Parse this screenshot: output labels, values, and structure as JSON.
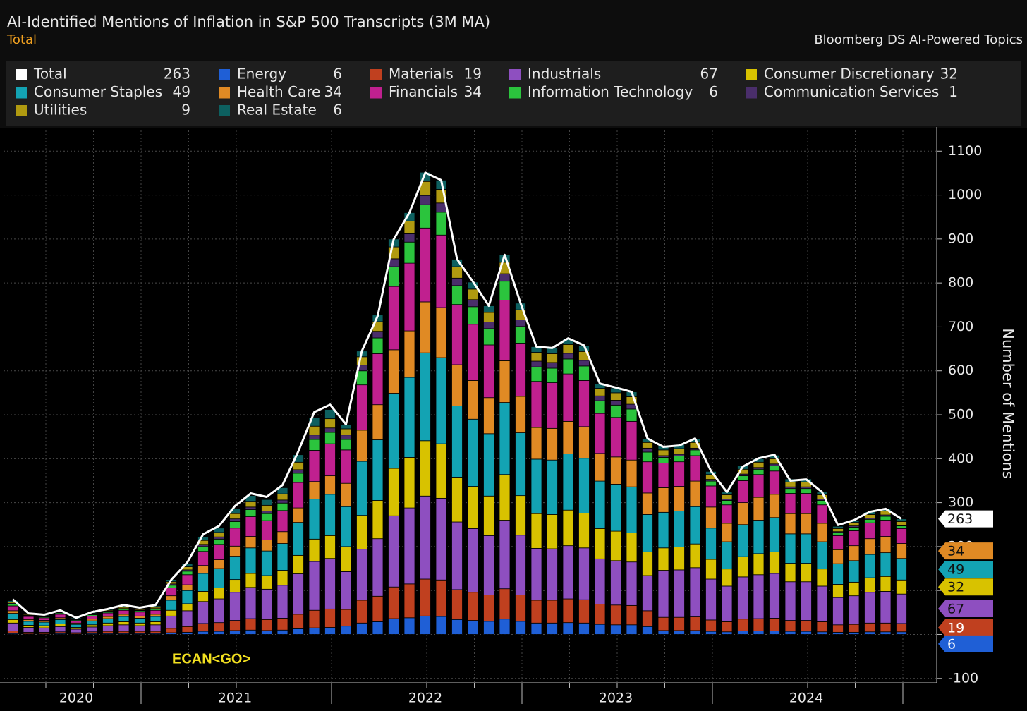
{
  "chart_data": {
    "type": "bar",
    "stacked": true,
    "title": "AI-Identified Mentions of Inflation in S&P 500 Transcripts (3M MA)",
    "subtitle": "Total",
    "source": "Bloomberg DS AI-Powered Topics",
    "y_label": "Number of Mentions",
    "annotation": "ECAN<GO>",
    "grid": true,
    "ylim": [
      -110,
      1147
    ],
    "yticks": [
      -100,
      0,
      100,
      200,
      300,
      400,
      500,
      600,
      700,
      800,
      900,
      1000,
      1100
    ],
    "categories": [
      null,
      null,
      null,
      null,
      "2020",
      null,
      null,
      null,
      null,
      null,
      null,
      null,
      null,
      null,
      "2021",
      null,
      null,
      null,
      null,
      null,
      null,
      null,
      null,
      null,
      null,
      null,
      "2022",
      null,
      null,
      null,
      null,
      null,
      null,
      null,
      null,
      null,
      null,
      null,
      "2023",
      null,
      null,
      null,
      null,
      null,
      null,
      null,
      null,
      null,
      null,
      null,
      "2024",
      null,
      null,
      null,
      null,
      null,
      null
    ],
    "series": [
      {
        "name": "Total",
        "kind": "line",
        "color": "#ffffff",
        "values": [
          80,
          48,
          45,
          55,
          38,
          51,
          58,
          67,
          61,
          67,
          125,
          164,
          228,
          247,
          292,
          321,
          313,
          340,
          417,
          506,
          523,
          478,
          645,
          725,
          899,
          960,
          1051,
          1034,
          854,
          803,
          748,
          864,
          754,
          655,
          652,
          674,
          658,
          571,
          562,
          552,
          446,
          427,
          430,
          446,
          372,
          324,
          382,
          401,
          409,
          350,
          353,
          324,
          249,
          260,
          279,
          286,
          263
        ]
      },
      {
        "name": "Energy",
        "color": "#1f5fd6",
        "values": [
          2,
          1,
          1,
          2,
          1,
          2,
          2,
          2,
          2,
          2,
          4,
          5,
          7,
          7,
          9,
          10,
          9,
          10,
          13,
          15,
          16,
          19,
          26,
          29,
          36,
          38,
          42,
          41,
          34,
          32,
          30,
          35,
          30,
          26,
          26,
          27,
          26,
          23,
          22,
          22,
          18,
          9,
          9,
          9,
          7,
          6,
          8,
          8,
          8,
          7,
          7,
          6,
          5,
          5,
          6,
          6,
          6
        ]
      },
      {
        "name": "Materials",
        "color": "#c0401f",
        "values": [
          6,
          4,
          4,
          4,
          3,
          4,
          5,
          5,
          5,
          5,
          10,
          13,
          18,
          20,
          23,
          26,
          25,
          27,
          33,
          40,
          42,
          38,
          52,
          58,
          72,
          77,
          84,
          83,
          68,
          64,
          60,
          69,
          60,
          52,
          52,
          54,
          53,
          46,
          45,
          44,
          36,
          30,
          30,
          31,
          26,
          23,
          27,
          28,
          29,
          25,
          25,
          23,
          17,
          18,
          20,
          20,
          19
        ]
      },
      {
        "name": "Industrials",
        "color": "#8e4fc0",
        "values": [
          18,
          11,
          10,
          12,
          8,
          11,
          13,
          15,
          13,
          15,
          28,
          36,
          50,
          54,
          64,
          71,
          69,
          75,
          92,
          111,
          115,
          86,
          116,
          131,
          162,
          173,
          189,
          186,
          154,
          145,
          135,
          156,
          136,
          118,
          117,
          121,
          118,
          103,
          101,
          99,
          80,
          107,
          108,
          112,
          93,
          81,
          96,
          100,
          102,
          88,
          88,
          81,
          62,
          65,
          70,
          72,
          67
        ]
      },
      {
        "name": "Consumer Discretionary",
        "color": "#d8c200",
        "values": [
          8,
          5,
          5,
          6,
          4,
          5,
          6,
          7,
          6,
          7,
          13,
          16,
          23,
          25,
          29,
          32,
          31,
          34,
          42,
          51,
          52,
          57,
          77,
          87,
          108,
          115,
          126,
          124,
          102,
          96,
          90,
          104,
          90,
          79,
          78,
          81,
          79,
          69,
          67,
          66,
          54,
          51,
          52,
          54,
          45,
          39,
          46,
          48,
          49,
          42,
          42,
          39,
          30,
          31,
          33,
          34,
          32
        ]
      },
      {
        "name": "Consumer Staples",
        "color": "#13a3b3",
        "values": [
          14,
          9,
          8,
          10,
          7,
          9,
          10,
          12,
          11,
          12,
          23,
          30,
          41,
          44,
          53,
          58,
          56,
          61,
          75,
          91,
          94,
          91,
          123,
          138,
          171,
          182,
          200,
          196,
          162,
          153,
          142,
          164,
          143,
          124,
          124,
          128,
          125,
          108,
          107,
          105,
          85,
          81,
          82,
          85,
          71,
          62,
          73,
          76,
          78,
          67,
          67,
          62,
          47,
          49,
          53,
          54,
          49
        ]
      },
      {
        "name": "Health Care",
        "color": "#e08a24",
        "values": [
          6,
          4,
          4,
          4,
          3,
          4,
          5,
          5,
          5,
          5,
          10,
          13,
          18,
          20,
          23,
          26,
          25,
          27,
          33,
          40,
          42,
          53,
          71,
          80,
          99,
          106,
          116,
          114,
          94,
          88,
          82,
          95,
          83,
          72,
          72,
          74,
          72,
          63,
          62,
          61,
          49,
          56,
          56,
          58,
          48,
          42,
          50,
          52,
          53,
          46,
          46,
          42,
          32,
          34,
          36,
          37,
          34
        ]
      },
      {
        "name": "Financials",
        "color": "#c0208f",
        "values": [
          11,
          7,
          6,
          8,
          5,
          7,
          8,
          9,
          9,
          9,
          18,
          23,
          32,
          35,
          41,
          45,
          44,
          48,
          58,
          71,
          73,
          76,
          103,
          116,
          144,
          154,
          168,
          165,
          137,
          128,
          120,
          138,
          121,
          105,
          104,
          108,
          105,
          91,
          90,
          88,
          71,
          56,
          56,
          58,
          48,
          42,
          50,
          52,
          53,
          46,
          46,
          42,
          32,
          34,
          36,
          37,
          34
        ]
      },
      {
        "name": "Information Technology",
        "color": "#2bc43d",
        "values": [
          4,
          2,
          2,
          3,
          2,
          3,
          3,
          3,
          3,
          3,
          6,
          8,
          11,
          12,
          15,
          16,
          16,
          17,
          21,
          25,
          26,
          24,
          32,
          36,
          45,
          48,
          53,
          52,
          43,
          40,
          37,
          43,
          38,
          33,
          33,
          34,
          33,
          29,
          28,
          28,
          22,
          13,
          13,
          13,
          11,
          10,
          11,
          12,
          12,
          11,
          11,
          10,
          7,
          8,
          8,
          9,
          6
        ]
      },
      {
        "name": "Communication Services",
        "color": "#4a2e6b",
        "values": [
          2,
          1,
          1,
          1,
          1,
          1,
          1,
          1,
          1,
          1,
          3,
          3,
          5,
          5,
          6,
          6,
          6,
          7,
          8,
          10,
          10,
          10,
          13,
          15,
          18,
          19,
          21,
          21,
          17,
          16,
          15,
          17,
          15,
          13,
          13,
          13,
          13,
          11,
          11,
          11,
          9,
          4,
          4,
          4,
          4,
          3,
          4,
          4,
          4,
          4,
          4,
          3,
          2,
          3,
          3,
          3,
          1
        ]
      },
      {
        "name": "Utilities",
        "color": "#b09a10",
        "values": [
          3,
          2,
          2,
          2,
          2,
          2,
          2,
          3,
          2,
          3,
          5,
          7,
          9,
          10,
          12,
          13,
          13,
          14,
          17,
          20,
          21,
          14,
          19,
          22,
          27,
          29,
          32,
          31,
          26,
          24,
          22,
          26,
          23,
          20,
          20,
          20,
          20,
          17,
          17,
          17,
          13,
          13,
          13,
          13,
          11,
          10,
          11,
          12,
          12,
          11,
          11,
          10,
          7,
          8,
          8,
          9,
          9
        ]
      },
      {
        "name": "Real Estate",
        "color": "#0d6060",
        "values": [
          3,
          2,
          2,
          2,
          2,
          2,
          2,
          3,
          2,
          3,
          5,
          7,
          9,
          10,
          12,
          13,
          13,
          14,
          17,
          20,
          21,
          10,
          13,
          15,
          18,
          19,
          21,
          21,
          17,
          16,
          15,
          17,
          15,
          13,
          13,
          13,
          13,
          11,
          11,
          11,
          9,
          9,
          9,
          9,
          7,
          6,
          8,
          8,
          8,
          7,
          7,
          6,
          5,
          5,
          6,
          6,
          6
        ]
      }
    ]
  }
}
